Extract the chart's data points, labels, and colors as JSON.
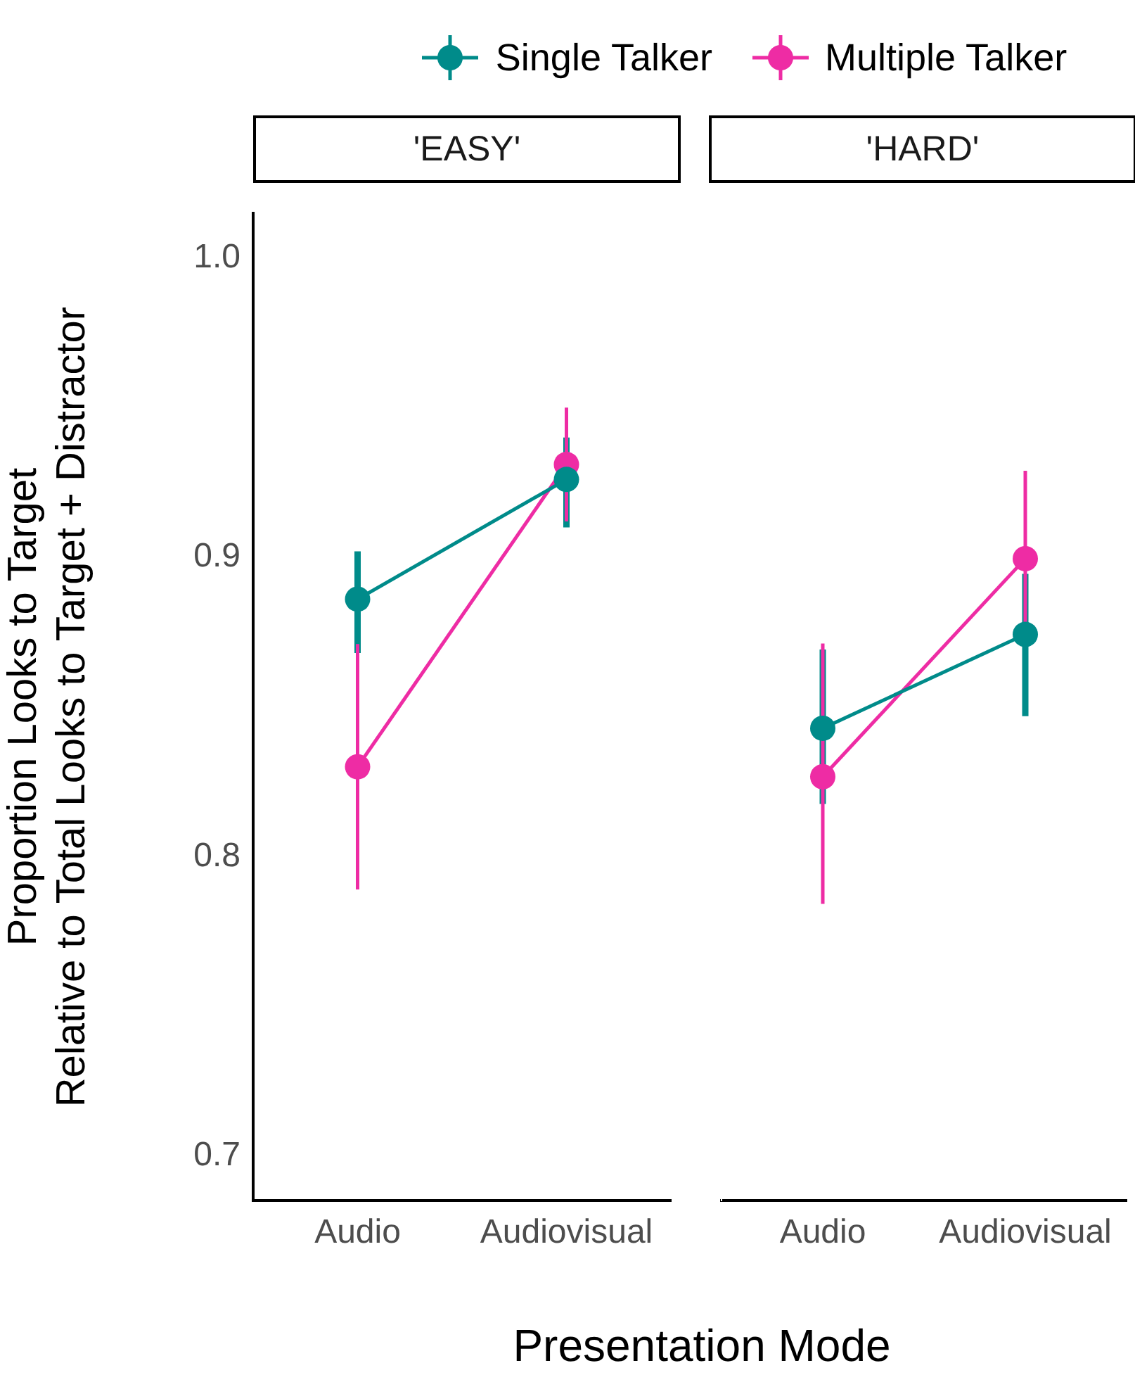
{
  "chart_data": [
    {
      "type": "line",
      "title": "'EASY'",
      "xlabel": "Presentation Mode",
      "ylabel": "Proportion Looks to Target\nRelative to Total Looks to Target + Distractor",
      "categories": [
        "Audio",
        "Audiovisual"
      ],
      "ylim": [
        0.685,
        1.015
      ],
      "yticks": [
        0.7,
        0.8,
        0.9,
        {
          "value": 1,
          "label": "1.0"
        }
      ],
      "legend": "top",
      "marker": "circle",
      "line_style": "solid",
      "series": [
        {
          "name": "Single Talker",
          "color": "#008b8a",
          "values": [
            0.886,
            0.926
          ],
          "errors": [
            [
              0.868,
              0.902
            ],
            [
              0.91,
              0.94
            ]
          ]
        },
        {
          "name": "Multiple Talker",
          "color": "#ee2ca4",
          "values": [
            0.83,
            0.931
          ],
          "errors": [
            [
              0.789,
              0.871
            ],
            [
              0.912,
              0.95
            ]
          ]
        }
      ]
    },
    {
      "type": "line",
      "title": "'HARD'",
      "categories": [
        "Audio",
        "Audiovisual"
      ],
      "ylim": [
        0.685,
        1.015
      ],
      "yticks": [
        0.7,
        0.8,
        0.9,
        1
      ],
      "marker": "circle",
      "line_style": "solid",
      "tick_labels": "x",
      "series": [
        {
          "color": "#008b8a",
          "values": [
            0.841,
            0.872
          ],
          "errors": [
            [
              0.816,
              0.867
            ],
            [
              0.845,
              0.892
            ]
          ]
        },
        {
          "color": "#ee2ca4",
          "values": [
            0.825,
            0.897
          ],
          "errors": [
            [
              0.783,
              0.869
            ],
            [
              0.868,
              0.926
            ]
          ]
        }
      ]
    }
  ]
}
